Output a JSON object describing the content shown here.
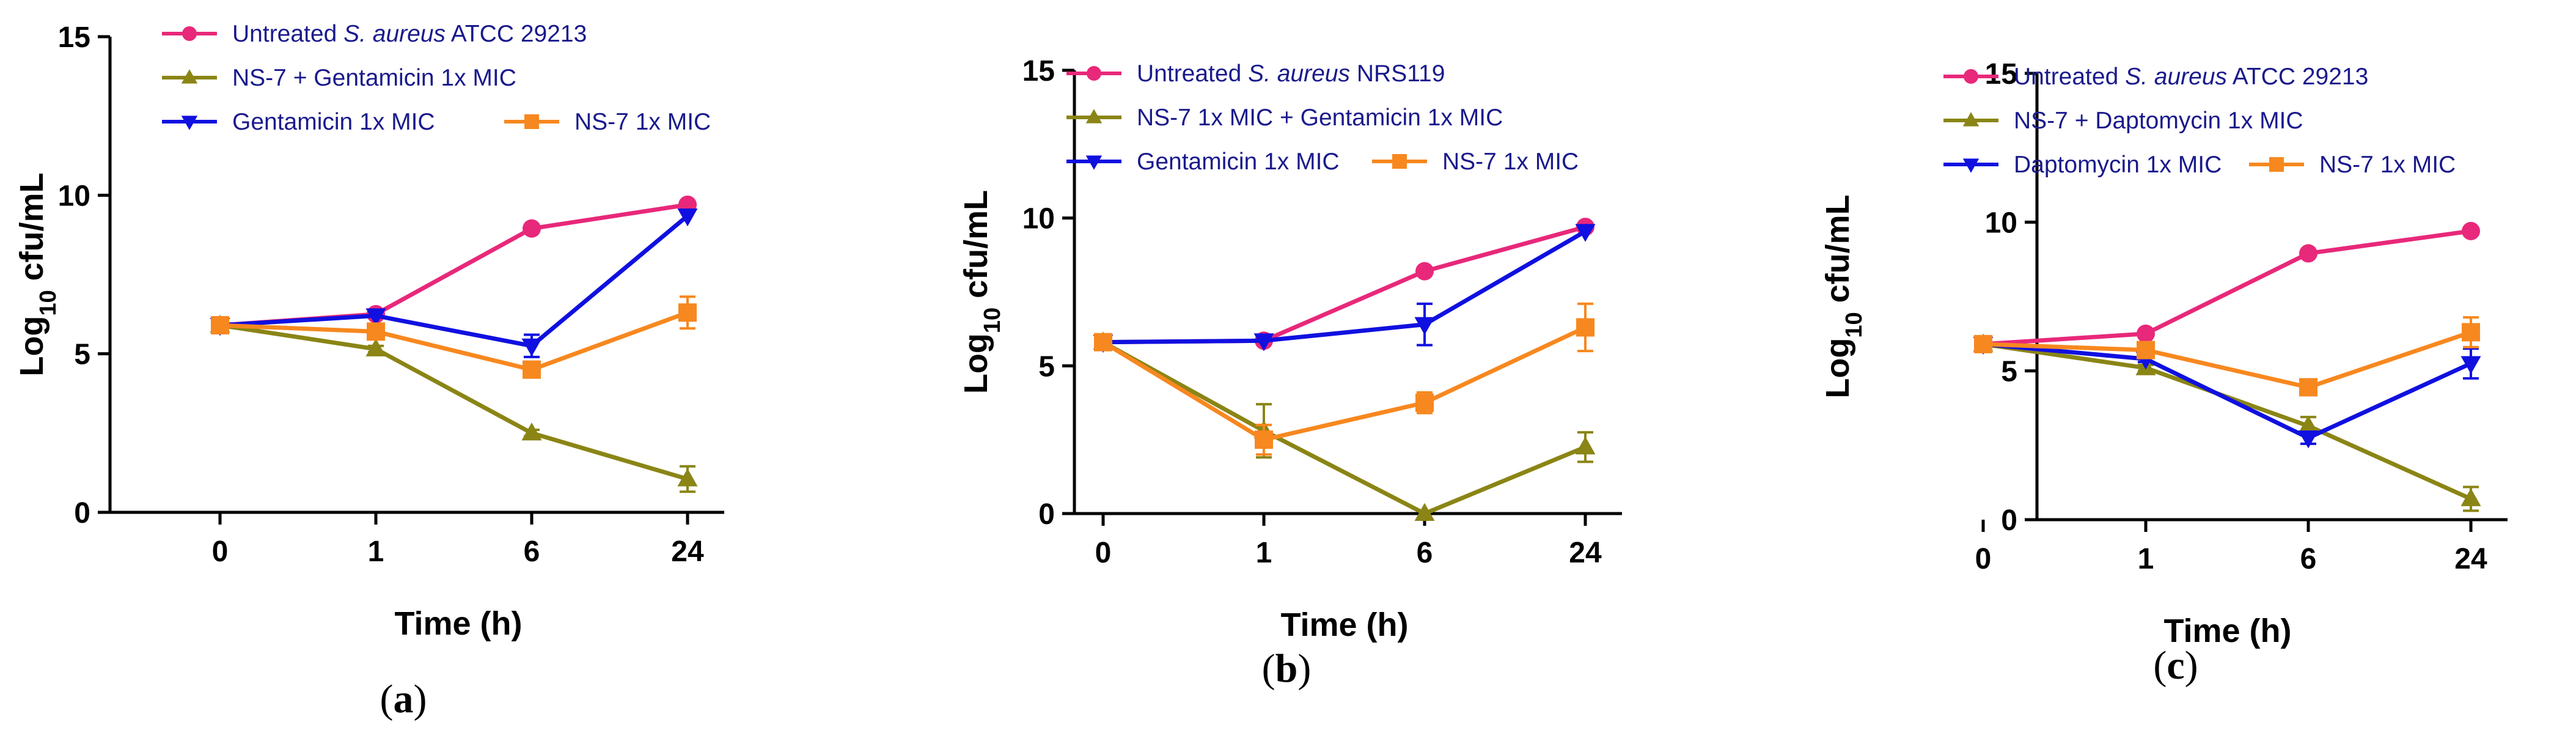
{
  "chart_data": [
    {
      "type": "line",
      "panel_label": "a",
      "xlabel": "Time (h)",
      "ylabel": "Log10 cfu/mL",
      "ylabel_parts": {
        "main": "Log",
        "sub": "10",
        "rest": " cfu/mL"
      },
      "categories": [
        "0",
        "1",
        "6",
        "24"
      ],
      "ylim": [
        0,
        15
      ],
      "yticks": [
        "0",
        "5",
        "10",
        "15"
      ],
      "series": [
        {
          "name": "Untreated S. aureus ATCC 29213",
          "label_parts": [
            {
              "t": "Untreated ",
              "i": false
            },
            {
              "t": "S. aureus",
              "i": true
            },
            {
              "t": " ATCC 29213",
              "i": false
            }
          ],
          "color": "#e8287a",
          "marker": "circle",
          "values": [
            5.9,
            6.25,
            8.95,
            9.7
          ],
          "errors": [
            0,
            0,
            0,
            0
          ]
        },
        {
          "name": "NS-7 + Gentamicin 1x MIC",
          "label_parts": [
            {
              "t": "NS-7 + Gentamicin 1x MIC",
              "i": false
            }
          ],
          "color": "#8a8515",
          "marker": "triangle-up",
          "values": [
            5.9,
            5.15,
            2.5,
            1.05
          ],
          "errors": [
            0,
            0.1,
            0.1,
            0.4
          ]
        },
        {
          "name": "Gentamicin 1x MIC",
          "label_parts": [
            {
              "t": "Gentamicin 1x MIC",
              "i": false
            }
          ],
          "color": "#1010e0",
          "marker": "triangle-down",
          "values": [
            5.9,
            6.2,
            5.25,
            9.35
          ],
          "errors": [
            0,
            0,
            0.35,
            0
          ]
        },
        {
          "name": "NS-7 1x MIC",
          "label_parts": [
            {
              "t": "NS-7 1x MIC",
              "i": false
            }
          ],
          "color": "#f7881f",
          "marker": "square",
          "values": [
            5.9,
            5.7,
            4.5,
            6.3
          ],
          "errors": [
            0,
            0.15,
            0.1,
            0.5
          ]
        }
      ]
    },
    {
      "type": "line",
      "panel_label": "b",
      "xlabel": "Time (h)",
      "ylabel": "Log10 cfu/mL",
      "ylabel_parts": {
        "main": "Log",
        "sub": "10",
        "rest": " cfu/mL"
      },
      "categories": [
        "0",
        "1",
        "6",
        "24"
      ],
      "ylim": [
        0,
        15
      ],
      "yticks": [
        "0",
        "5",
        "10",
        "15"
      ],
      "series": [
        {
          "name": "Untreated S. aureus NRS119",
          "label_parts": [
            {
              "t": "Untreated ",
              "i": false
            },
            {
              "t": "S. aureus",
              "i": true
            },
            {
              "t": " NRS119",
              "i": false
            }
          ],
          "color": "#e8287a",
          "marker": "circle",
          "values": [
            5.8,
            5.85,
            8.2,
            9.7
          ],
          "errors": [
            0,
            0,
            0,
            0
          ]
        },
        {
          "name": "NS-7 1x MIC + Gentamicin 1x MIC",
          "label_parts": [
            {
              "t": "NS-7 1x MIC + Gentamicin 1x MIC",
              "i": false
            }
          ],
          "color": "#8a8515",
          "marker": "triangle-up",
          "values": [
            5.8,
            2.8,
            0,
            2.25
          ],
          "errors": [
            0,
            0.9,
            0,
            0.5
          ]
        },
        {
          "name": "Gentamicin 1x MIC",
          "label_parts": [
            {
              "t": "Gentamicin 1x MIC",
              "i": false
            }
          ],
          "color": "#1010e0",
          "marker": "triangle-down",
          "values": [
            5.8,
            5.85,
            6.4,
            9.55
          ],
          "errors": [
            0,
            0,
            0.7,
            0
          ]
        },
        {
          "name": "NS-7 1x MIC",
          "label_parts": [
            {
              "t": "NS-7 1x MIC",
              "i": false
            }
          ],
          "color": "#f7881f",
          "marker": "square",
          "values": [
            5.8,
            2.5,
            3.75,
            6.3
          ],
          "errors": [
            0,
            0.5,
            0.35,
            0.8
          ]
        }
      ]
    },
    {
      "type": "line",
      "panel_label": "c",
      "xlabel": "Time (h)",
      "ylabel": "Log10 cfu/mL",
      "ylabel_parts": {
        "main": "Log",
        "sub": "10",
        "rest": " cfu/mL"
      },
      "categories": [
        "0",
        "1",
        "6",
        "24"
      ],
      "ylim": [
        0,
        15
      ],
      "yticks": [
        "0",
        "5",
        "10",
        "15"
      ],
      "series": [
        {
          "name": "Untreated S. aureus ATCC 29213",
          "label_parts": [
            {
              "t": "Untreated ",
              "i": false
            },
            {
              "t": "S. aureus",
              "i": true
            },
            {
              "t": " ATCC 29213",
              "i": false
            }
          ],
          "color": "#e8287a",
          "marker": "circle",
          "values": [
            5.9,
            6.25,
            8.95,
            9.7
          ],
          "errors": [
            0,
            0,
            0,
            0
          ]
        },
        {
          "name": "NS-7 + Daptomycin 1x MIC",
          "label_parts": [
            {
              "t": "NS-7 + Daptomycin 1x MIC",
              "i": false
            }
          ],
          "color": "#8a8515",
          "marker": "triangle-up",
          "values": [
            5.9,
            5.1,
            3.15,
            0.7
          ],
          "errors": [
            0,
            0.1,
            0.3,
            0.4
          ]
        },
        {
          "name": "Daptomycin 1x MIC",
          "label_parts": [
            {
              "t": "Daptomycin 1x MIC",
              "i": false
            }
          ],
          "color": "#1010e0",
          "marker": "triangle-down",
          "values": [
            5.9,
            5.4,
            2.75,
            5.25
          ],
          "errors": [
            0,
            0.1,
            0.2,
            0.5
          ]
        },
        {
          "name": "NS-7 1x MIC",
          "label_parts": [
            {
              "t": "NS-7 1x MIC",
              "i": false
            }
          ],
          "color": "#f7881f",
          "marker": "square",
          "values": [
            5.9,
            5.7,
            4.45,
            6.3
          ],
          "errors": [
            0,
            0.1,
            0.1,
            0.5
          ]
        }
      ]
    }
  ]
}
